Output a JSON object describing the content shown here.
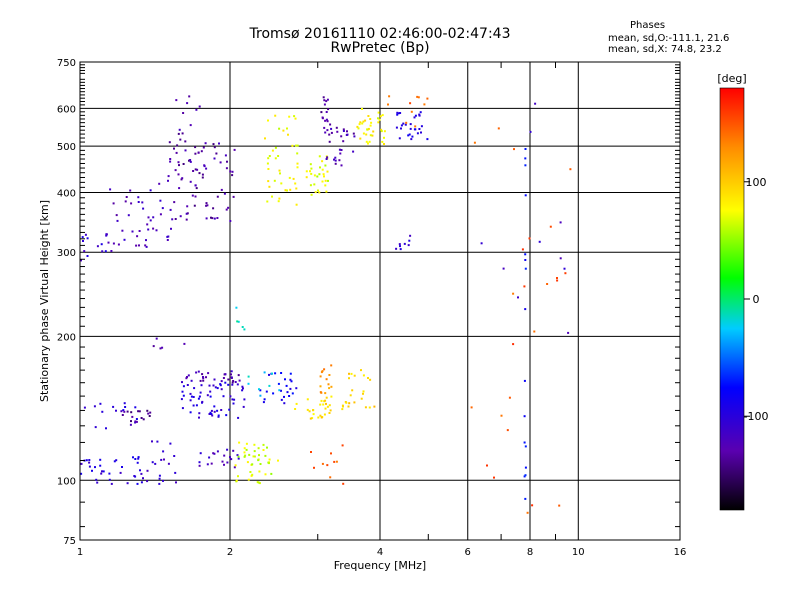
{
  "header": {
    "title_line1": "Tromsø 20161110 02:46:00-02:47:43",
    "title_line2": "RwPretec (Bp)",
    "phases_title": "Phases",
    "phases_o": "mean, sd,O:-111.1, 21.6",
    "phases_x": "mean, sd,X: 74.8, 23.2"
  },
  "chart_data": {
    "type": "scatter",
    "title": "Tromsø 20161110 02:46:00-02:47:43",
    "subtitle": "RwPretec (Bp)",
    "xlabel": "Frequency [MHz]",
    "ylabel": "Stationary phase Virtual Height [km]",
    "x_scale": "log",
    "y_scale": "log",
    "xlim": [
      1,
      16
    ],
    "ylim": [
      75,
      750
    ],
    "x_ticks": [
      1,
      2,
      4,
      6,
      8,
      10,
      16
    ],
    "x_minor": [
      3,
      5,
      7,
      9
    ],
    "y_ticks": [
      75,
      100,
      200,
      300,
      400,
      500,
      600,
      750
    ],
    "grid": true,
    "colorbar": {
      "label": "[deg]",
      "range": [
        -180,
        180
      ],
      "ticks": [
        100,
        0,
        -100
      ]
    },
    "clusters": [
      {
        "x": [
          1.0,
          1.14
        ],
        "y": [
          288,
          330
        ],
        "phase": -105,
        "n": 14
      },
      {
        "x": [
          1.14,
          1.55
        ],
        "y": [
          300,
          420
        ],
        "phase": -120,
        "n": 44
      },
      {
        "x": [
          1.5,
          2.05
        ],
        "y": [
          345,
          520
        ],
        "phase": -130,
        "n": 78
      },
      {
        "x": [
          1.5,
          1.75
        ],
        "y": [
          480,
          640
        ],
        "phase": -130,
        "n": 14
      },
      {
        "x": [
          2.35,
          2.75
        ],
        "y": [
          375,
          590
        ],
        "phase": 75,
        "n": 42
      },
      {
        "x": [
          2.85,
          3.15
        ],
        "y": [
          395,
          480
        ],
        "phase": 70,
        "n": 30
      },
      {
        "x": [
          3.1,
          3.6
        ],
        "y": [
          455,
          560
        ],
        "phase": -125,
        "n": 30
      },
      {
        "x": [
          3.05,
          3.15
        ],
        "y": [
          545,
          640
        ],
        "phase": -130,
        "n": 14
      },
      {
        "x": [
          3.6,
          4.1
        ],
        "y": [
          505,
          600
        ],
        "phase": 80,
        "n": 36
      },
      {
        "x": [
          4.3,
          5.0
        ],
        "y": [
          515,
          590
        ],
        "phase": -95,
        "n": 28
      },
      {
        "x": [
          4.15,
          5.1
        ],
        "y": [
          545,
          640
        ],
        "phase": 140,
        "n": 10
      },
      {
        "x": [
          4.3,
          4.6
        ],
        "y": [
          300,
          325
        ],
        "phase": -110,
        "n": 8
      },
      {
        "x": [
          1.0,
          1.35
        ],
        "y": [
          98,
          112
        ],
        "phase": -100,
        "n": 36
      },
      {
        "x": [
          1.0,
          1.35
        ],
        "y": [
          128,
          145
        ],
        "phase": -100,
        "n": 14
      },
      {
        "x": [
          1.2,
          1.4
        ],
        "y": [
          130,
          140
        ],
        "phase": -135,
        "n": 18
      },
      {
        "x": [
          1.35,
          1.6
        ],
        "y": [
          98,
          122
        ],
        "phase": -110,
        "n": 18
      },
      {
        "x": [
          1.6,
          2.1
        ],
        "y": [
          160,
          170
        ],
        "phase": -125,
        "n": 30
      },
      {
        "x": [
          1.6,
          2.15
        ],
        "y": [
          135,
          160
        ],
        "phase": -100,
        "n": 60
      },
      {
        "x": [
          1.7,
          2.1
        ],
        "y": [
          105,
          118
        ],
        "phase": -115,
        "n": 20
      },
      {
        "x": [
          2.05,
          2.5
        ],
        "y": [
          98,
          120
        ],
        "phase": 65,
        "n": 44
      },
      {
        "x": [
          2.3,
          2.75
        ],
        "y": [
          140,
          168
        ],
        "phase": -85,
        "n": 24
      },
      {
        "x": [
          2.15,
          2.55
        ],
        "y": [
          150,
          172
        ],
        "phase": -20,
        "n": 8
      },
      {
        "x": [
          2.7,
          2.95
        ],
        "y": [
          132,
          150
        ],
        "phase": 90,
        "n": 10
      },
      {
        "x": [
          3.0,
          3.2
        ],
        "y": [
          135,
          150
        ],
        "phase": 90,
        "n": 18
      },
      {
        "x": [
          3.0,
          3.2
        ],
        "y": [
          150,
          178
        ],
        "phase": 125,
        "n": 14
      },
      {
        "x": [
          3.35,
          3.9
        ],
        "y": [
          140,
          172
        ],
        "phase": 95,
        "n": 24
      },
      {
        "x": [
          2.9,
          3.4
        ],
        "y": [
          98,
          122
        ],
        "phase": 145,
        "n": 10
      },
      {
        "x": [
          1.4,
          1.65
        ],
        "y": [
          185,
          200
        ],
        "phase": -130,
        "n": 5
      },
      {
        "x": [
          2.05,
          2.15
        ],
        "y": [
          205,
          232
        ],
        "phase": -10,
        "n": 5
      },
      {
        "x": [
          7.8,
          7.85
        ],
        "y": [
          78,
          520
        ],
        "phase": -75,
        "n": 16
      },
      {
        "x": [
          6.05,
          9.9
        ],
        "y": [
          78,
          620
        ],
        "phase": 150,
        "n": 24
      },
      {
        "x": [
          6.05,
          9.9
        ],
        "y": [
          200,
          620
        ],
        "phase": -110,
        "n": 10
      }
    ]
  }
}
